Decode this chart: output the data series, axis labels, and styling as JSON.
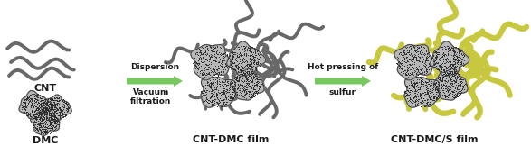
{
  "bg_color": "#ffffff",
  "cnt_color": "#686868",
  "dmc_fill": "#b8b8b8",
  "dmc_edge": "#484848",
  "dmc_dot": "#2a2a2a",
  "sulfur_color": "#e0e060",
  "sulfur_edge": "#c8c840",
  "arrow_color": "#78c860",
  "text_color": "#1a1a1a",
  "label_cnt": "CNT",
  "label_dmc": "DMC",
  "label_film1": "CNT-DMC film",
  "label_film2": "CNT-DMC/S film",
  "arrow1_text1": "Dispersion",
  "arrow1_text2": "Vacuum",
  "arrow1_text3": "filtration",
  "arrow2_text1": "Hot pressing of",
  "arrow2_text2": "sulfur",
  "figsize": [
    5.87,
    1.72
  ],
  "dpi": 100
}
